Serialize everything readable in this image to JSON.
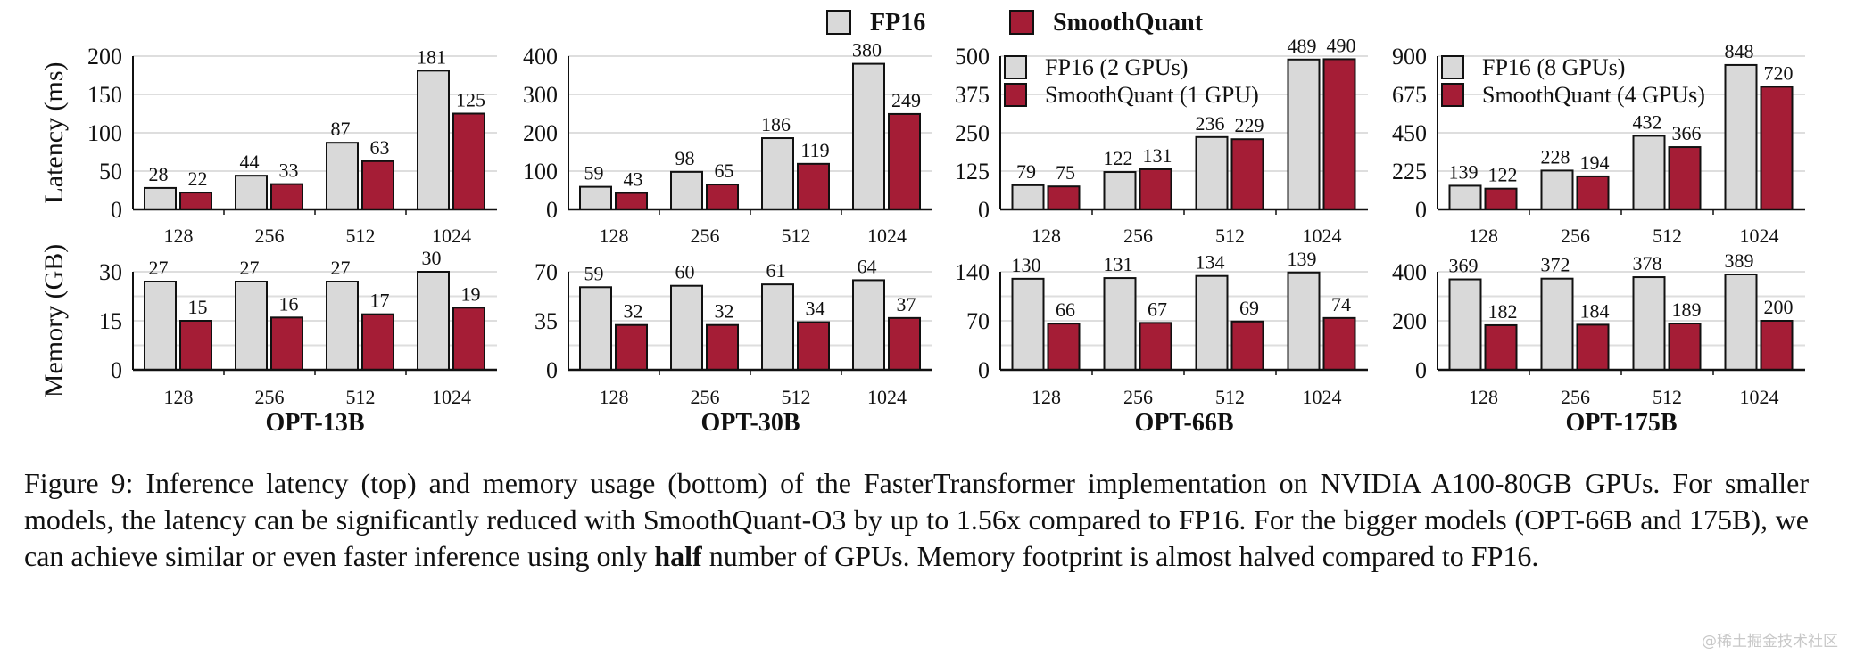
{
  "chart_data": [
    {
      "type": "bar",
      "title": "OPT-13B",
      "categories": [
        "128",
        "256",
        "512",
        "1024"
      ],
      "latency": {
        "ylabel": "Latency (ms)",
        "ylim": [
          0,
          200
        ],
        "ticks": [
          0,
          50,
          100,
          150,
          200
        ],
        "series": [
          {
            "name": "FP16",
            "values": [
              28,
              44,
              87,
              181
            ]
          },
          {
            "name": "SmoothQuant",
            "values": [
              22,
              33,
              63,
              125
            ]
          }
        ]
      },
      "memory": {
        "ylabel": "Memory (GB)",
        "ylim": [
          0,
          30
        ],
        "ticks": [
          0,
          15,
          30
        ],
        "series": [
          {
            "name": "FP16",
            "values": [
              27,
              27,
              27,
              30
            ]
          },
          {
            "name": "SmoothQuant",
            "values": [
              15,
              16,
              17,
              19
            ]
          }
        ]
      }
    },
    {
      "type": "bar",
      "title": "OPT-30B",
      "categories": [
        "128",
        "256",
        "512",
        "1024"
      ],
      "latency": {
        "ylim": [
          0,
          400
        ],
        "ticks": [
          0,
          100,
          200,
          300,
          400
        ],
        "series": [
          {
            "name": "FP16",
            "values": [
              59,
              98,
              186,
              380
            ]
          },
          {
            "name": "SmoothQuant",
            "values": [
              43,
              65,
              119,
              249
            ]
          }
        ]
      },
      "memory": {
        "ylim": [
          0,
          70
        ],
        "ticks": [
          0,
          35,
          70
        ],
        "series": [
          {
            "name": "FP16",
            "values": [
              59,
              60,
              61,
              64
            ]
          },
          {
            "name": "SmoothQuant",
            "values": [
              32,
              32,
              34,
              37
            ]
          }
        ]
      }
    },
    {
      "type": "bar",
      "title": "OPT-66B",
      "categories": [
        "128",
        "256",
        "512",
        "1024"
      ],
      "legend": [
        "FP16 (2 GPUs)",
        "SmoothQuant (1 GPU)"
      ],
      "latency": {
        "ylim": [
          0,
          500
        ],
        "ticks": [
          0,
          125,
          250,
          375,
          500
        ],
        "series": [
          {
            "name": "FP16 (2 GPUs)",
            "values": [
              79,
              122,
              236,
              489
            ]
          },
          {
            "name": "SmoothQuant (1 GPU)",
            "values": [
              75,
              131,
              229,
              490
            ]
          }
        ]
      },
      "memory": {
        "ylim": [
          0,
          140
        ],
        "ticks": [
          0,
          70,
          140
        ],
        "series": [
          {
            "name": "FP16",
            "values": [
              130,
              131,
              134,
              139
            ]
          },
          {
            "name": "SmoothQuant",
            "values": [
              66,
              67,
              69,
              74
            ]
          }
        ]
      }
    },
    {
      "type": "bar",
      "title": "OPT-175B",
      "categories": [
        "128",
        "256",
        "512",
        "1024"
      ],
      "legend": [
        "FP16 (8 GPUs)",
        "SmoothQuant (4 GPUs)"
      ],
      "latency": {
        "ylim": [
          0,
          900
        ],
        "ticks": [
          0,
          225,
          450,
          675,
          900
        ],
        "series": [
          {
            "name": "FP16 (8 GPUs)",
            "values": [
              139,
              228,
              432,
              848
            ]
          },
          {
            "name": "SmoothQuant (4 GPUs)",
            "values": [
              122,
              194,
              366,
              720
            ]
          }
        ]
      },
      "memory": {
        "ylim": [
          0,
          400
        ],
        "ticks": [
          0,
          200,
          400
        ],
        "series": [
          {
            "name": "FP16",
            "values": [
              369,
              372,
              378,
              389
            ]
          },
          {
            "name": "SmoothQuant",
            "values": [
              182,
              184,
              189,
              200
            ]
          }
        ]
      }
    }
  ],
  "legend": {
    "fp16": "FP16",
    "smoothquant": "SmoothQuant"
  },
  "colors": {
    "fp16": "#d9d9d9",
    "smoothquant": "#a51d36",
    "grid": "#dedede"
  },
  "caption": {
    "part1": "Figure 9: Inference latency (top) and memory usage (bottom) of the FasterTransformer implementation on NVIDIA A100-80GB GPUs. For smaller models, the latency can be significantly reduced with SmoothQuant-O3 by up to 1.56x compared to FP16. For the bigger models (OPT-66B and 175B), we can achieve similar or even faster inference using only ",
    "bold": "half",
    "part2": " number of GPUs. Memory footprint is almost halved compared to FP16."
  },
  "watermark": "@稀土掘金技术社区"
}
